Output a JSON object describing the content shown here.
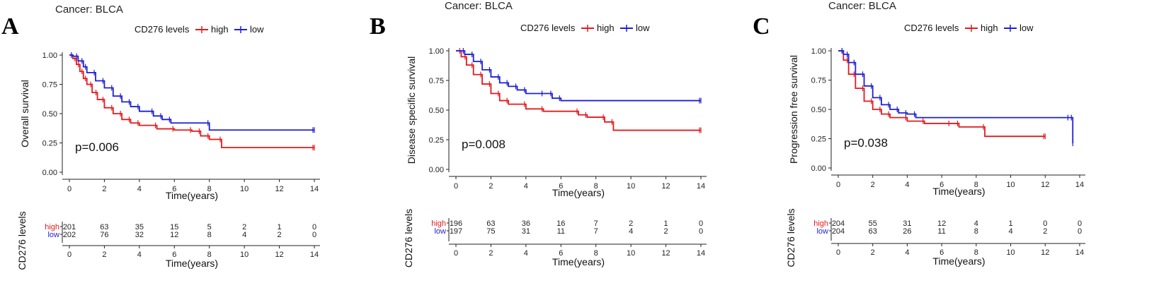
{
  "chart_data": [
    {
      "type": "line",
      "panel_letter": "A",
      "title": "Cancer: BLCA",
      "legend_title": "CD276 levels",
      "legend_entries": [
        {
          "label": "high",
          "color": "#e41a1c"
        },
        {
          "label": "low",
          "color": "#1f1fd6"
        }
      ],
      "ylabel": "Overall survival",
      "xlabel": "Time(years)",
      "ylim": [
        0,
        1
      ],
      "xlim": [
        0,
        14
      ],
      "x_ticks": [
        "0",
        "2",
        "4",
        "6",
        "8",
        "10",
        "12",
        "14"
      ],
      "y_ticks": [
        "0.00",
        "0.25",
        "0.50",
        "0.75",
        "1.00"
      ],
      "p_value": "p=0.006",
      "series": [
        {
          "name": "high",
          "color": "#e41a1c",
          "x": [
            0,
            0.2,
            0.4,
            0.6,
            0.8,
            1.0,
            1.3,
            1.6,
            2.0,
            2.5,
            3.0,
            3.5,
            4.0,
            5.0,
            6.0,
            7.0,
            7.5,
            8.0,
            8.7,
            14
          ],
          "y": [
            1.0,
            0.97,
            0.92,
            0.86,
            0.8,
            0.75,
            0.68,
            0.62,
            0.55,
            0.5,
            0.45,
            0.42,
            0.4,
            0.37,
            0.36,
            0.35,
            0.31,
            0.28,
            0.21,
            0.21
          ]
        },
        {
          "name": "low",
          "color": "#1f1fd6",
          "x": [
            0,
            0.2,
            0.5,
            0.8,
            1.0,
            1.5,
            2.0,
            2.5,
            3.0,
            3.5,
            4.0,
            4.8,
            5.3,
            5.8,
            8.0,
            14
          ],
          "y": [
            1.0,
            0.99,
            0.95,
            0.9,
            0.85,
            0.78,
            0.72,
            0.65,
            0.6,
            0.56,
            0.52,
            0.48,
            0.45,
            0.42,
            0.36,
            0.36
          ]
        }
      ],
      "risk_table": {
        "ylabel": "CD276 levels",
        "xlabel": "Time(years)",
        "times": [
          "0",
          "2",
          "4",
          "6",
          "8",
          "10",
          "12",
          "14"
        ],
        "rows": [
          {
            "name": "high",
            "color": "#e41a1c",
            "counts": [
              "201",
              "63",
              "35",
              "15",
              "5",
              "2",
              "1",
              "0"
            ]
          },
          {
            "name": "low",
            "color": "#1f1fd6",
            "counts": [
              "202",
              "76",
              "32",
              "12",
              "8",
              "4",
              "2",
              "0"
            ]
          }
        ]
      }
    },
    {
      "type": "line",
      "panel_letter": "B",
      "title": "Cancer: BLCA",
      "legend_title": "CD276 levels",
      "legend_entries": [
        {
          "label": "high",
          "color": "#e41a1c"
        },
        {
          "label": "low",
          "color": "#1f1fd6"
        }
      ],
      "ylabel": "Disease specific survival",
      "xlabel": "Time(years)",
      "ylim": [
        0,
        1
      ],
      "xlim": [
        0,
        14
      ],
      "x_ticks": [
        "0",
        "2",
        "4",
        "6",
        "8",
        "10",
        "12",
        "14"
      ],
      "y_ticks": [
        "0.00",
        "0.25",
        "0.50",
        "0.75",
        "1.00"
      ],
      "p_value": "p=0.008",
      "series": [
        {
          "name": "high",
          "color": "#e41a1c",
          "x": [
            0,
            0.3,
            0.6,
            1.0,
            1.5,
            2.0,
            2.5,
            3.0,
            4.0,
            5.0,
            7.0,
            7.5,
            8.5,
            9.0,
            14
          ],
          "y": [
            1.0,
            0.95,
            0.88,
            0.8,
            0.72,
            0.64,
            0.58,
            0.55,
            0.51,
            0.49,
            0.46,
            0.44,
            0.4,
            0.33,
            0.33
          ]
        },
        {
          "name": "low",
          "color": "#1f1fd6",
          "x": [
            0,
            0.5,
            1.0,
            1.5,
            2.0,
            2.5,
            3.0,
            3.5,
            4.0,
            5.0,
            5.5,
            6.0,
            14
          ],
          "y": [
            1.0,
            0.97,
            0.91,
            0.84,
            0.78,
            0.73,
            0.7,
            0.67,
            0.64,
            0.64,
            0.6,
            0.58,
            0.58
          ]
        }
      ],
      "risk_table": {
        "ylabel": "CD276 levels",
        "xlabel": "Time(years)",
        "times": [
          "0",
          "2",
          "4",
          "6",
          "8",
          "10",
          "12",
          "14"
        ],
        "rows": [
          {
            "name": "high",
            "color": "#e41a1c",
            "counts": [
              "196",
              "63",
              "36",
              "16",
              "7",
              "2",
              "1",
              "0"
            ]
          },
          {
            "name": "low",
            "color": "#1f1fd6",
            "counts": [
              "197",
              "75",
              "31",
              "11",
              "7",
              "4",
              "2",
              "0"
            ]
          }
        ]
      }
    },
    {
      "type": "line",
      "panel_letter": "C",
      "title": "Cancer: BLCA",
      "legend_title": "CD276 levels",
      "legend_entries": [
        {
          "label": "high",
          "color": "#e41a1c"
        },
        {
          "label": "low",
          "color": "#1f1fd6"
        }
      ],
      "ylabel": "Progression free survival",
      "xlabel": "Time(years)",
      "ylim": [
        0,
        1
      ],
      "xlim": [
        0,
        14
      ],
      "x_ticks": [
        "0",
        "2",
        "4",
        "6",
        "8",
        "10",
        "12",
        "14"
      ],
      "y_ticks": [
        "0.00",
        "0.25",
        "0.50",
        "0.75",
        "1.00"
      ],
      "p_value": "p=0.038",
      "series": [
        {
          "name": "high",
          "color": "#e41a1c",
          "x": [
            0,
            0.3,
            0.6,
            1.0,
            1.5,
            2.0,
            2.5,
            3.0,
            4.0,
            5.0,
            6.5,
            7.0,
            8.5,
            12
          ],
          "y": [
            1.0,
            0.92,
            0.8,
            0.68,
            0.57,
            0.5,
            0.46,
            0.43,
            0.4,
            0.38,
            0.38,
            0.35,
            0.27,
            0.27
          ]
        },
        {
          "name": "low",
          "color": "#1f1fd6",
          "x": [
            0,
            0.3,
            0.6,
            1.0,
            1.5,
            2.0,
            2.5,
            3.0,
            3.5,
            4.0,
            4.5,
            13.4,
            13.6
          ],
          "y": [
            1.0,
            0.97,
            0.9,
            0.8,
            0.7,
            0.6,
            0.54,
            0.5,
            0.47,
            0.46,
            0.43,
            0.43,
            0.21
          ]
        }
      ],
      "risk_table": {
        "ylabel": "CD276 levels",
        "xlabel": "Time(years)",
        "times": [
          "0",
          "2",
          "4",
          "6",
          "8",
          "10",
          "12",
          "14"
        ],
        "rows": [
          {
            "name": "high",
            "color": "#e41a1c",
            "counts": [
              "204",
              "55",
              "31",
              "12",
              "4",
              "1",
              "0",
              "0"
            ]
          },
          {
            "name": "low",
            "color": "#1f1fd6",
            "counts": [
              "204",
              "63",
              "26",
              "11",
              "8",
              "4",
              "2",
              "0"
            ]
          }
        ]
      }
    }
  ]
}
